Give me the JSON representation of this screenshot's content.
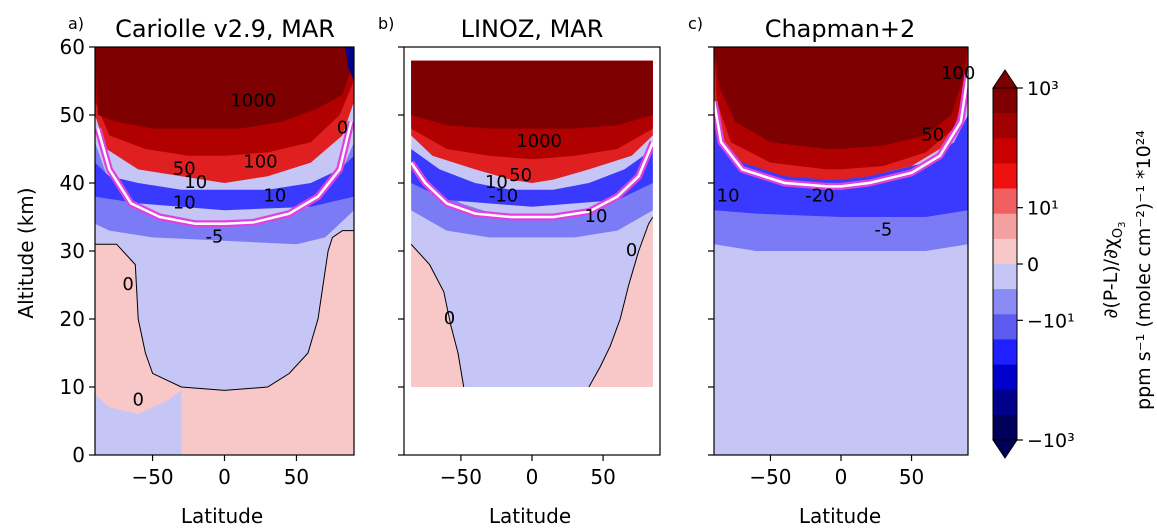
{
  "chart_data": [
    {
      "type": "heatmap",
      "panel_letter": "a)",
      "title": "Cariolle v2.9, MAR",
      "xlabel": "Latitude",
      "ylabel": "Altitude (km)",
      "xlim": [
        -90,
        90
      ],
      "ylim": [
        0,
        60
      ],
      "xticks": [
        -50,
        0,
        50
      ],
      "yticks": [
        0,
        10,
        20,
        30,
        40,
        50,
        60
      ],
      "xtick_labels": [
        "−50",
        "0",
        "50"
      ],
      "ytick_labels": [
        "0",
        "10",
        "20",
        "30",
        "40",
        "50",
        "60"
      ],
      "data_extent": {
        "lat": [
          -90,
          90
        ],
        "alt": [
          0,
          60
        ]
      },
      "contour_labels": [
        {
          "text": "1000",
          "lat": 20,
          "alt": 52
        },
        {
          "text": "100",
          "lat": 25,
          "alt": 43
        },
        {
          "text": "50",
          "lat": -28,
          "alt": 42
        },
        {
          "text": "10",
          "lat": -20,
          "alt": 40
        },
        {
          "text": "10",
          "lat": -28,
          "alt": 37
        },
        {
          "text": "10",
          "lat": 35,
          "alt": 38
        },
        {
          "text": "-5",
          "lat": -7,
          "alt": 32
        },
        {
          "text": "0",
          "lat": -67,
          "alt": 25
        },
        {
          "text": "0",
          "lat": -60,
          "alt": 8
        },
        {
          "text": "0",
          "lat": 82,
          "alt": 48
        }
      ],
      "zero_contour": [
        [
          -90,
          31
        ],
        [
          -75,
          31
        ],
        [
          -62,
          28
        ],
        [
          -60,
          20
        ],
        [
          -55,
          15
        ],
        [
          -50,
          12
        ],
        [
          -30,
          10
        ],
        [
          0,
          9.5
        ],
        [
          30,
          10
        ],
        [
          45,
          12
        ],
        [
          58,
          15
        ],
        [
          65,
          20
        ],
        [
          72,
          30
        ],
        [
          75,
          32
        ],
        [
          82,
          33
        ],
        [
          90,
          33
        ]
      ],
      "bottom_negative_band": [
        [
          -90,
          9
        ],
        [
          -80,
          7
        ],
        [
          -60,
          6
        ],
        [
          -50,
          7
        ],
        [
          -40,
          8
        ],
        [
          -30,
          9.5
        ],
        [
          -90,
          9.5
        ]
      ],
      "tropopause_line": [
        [
          -88,
          48
        ],
        [
          -80,
          42
        ],
        [
          -65,
          37
        ],
        [
          -45,
          35
        ],
        [
          -20,
          34
        ],
        [
          0,
          34
        ],
        [
          20,
          34.2
        ],
        [
          45,
          35.5
        ],
        [
          65,
          38
        ],
        [
          80,
          42
        ],
        [
          88,
          49
        ]
      ]
    },
    {
      "type": "heatmap",
      "panel_letter": "b)",
      "title": "LINOZ, MAR",
      "xlabel": "Latitude",
      "ylabel": "",
      "xlim": [
        -90,
        90
      ],
      "ylim": [
        0,
        60
      ],
      "xticks": [
        -50,
        0,
        50
      ],
      "yticks": [
        0,
        10,
        20,
        30,
        40,
        50,
        60
      ],
      "xtick_labels": [
        "−50",
        "0",
        "50"
      ],
      "ytick_labels": [],
      "data_extent": {
        "lat": [
          -85,
          85
        ],
        "alt": [
          10,
          58
        ]
      },
      "contour_labels": [
        {
          "text": "1000",
          "lat": 5,
          "alt": 46
        },
        {
          "text": "50",
          "lat": -8,
          "alt": 41
        },
        {
          "text": "10",
          "lat": -25,
          "alt": 40
        },
        {
          "text": "-10",
          "lat": -20,
          "alt": 38
        },
        {
          "text": "10",
          "lat": 45,
          "alt": 35
        },
        {
          "text": "0",
          "lat": 70,
          "alt": 30
        },
        {
          "text": "0",
          "lat": -58,
          "alt": 20
        }
      ],
      "zero_contour": [
        [
          -85,
          31
        ],
        [
          -72,
          28
        ],
        [
          -62,
          24
        ],
        [
          -57,
          19
        ],
        [
          -52,
          15
        ],
        [
          -48,
          10
        ]
      ],
      "zero_contour_right": [
        [
          40,
          10
        ],
        [
          48,
          13
        ],
        [
          55,
          16
        ],
        [
          62,
          20
        ],
        [
          68,
          25
        ],
        [
          75,
          30
        ],
        [
          82,
          34
        ],
        [
          85,
          35
        ]
      ],
      "tropopause_line": [
        [
          -85,
          43
        ],
        [
          -75,
          40
        ],
        [
          -60,
          37
        ],
        [
          -40,
          35.5
        ],
        [
          -15,
          35
        ],
        [
          0,
          35
        ],
        [
          15,
          35
        ],
        [
          40,
          35.8
        ],
        [
          60,
          38
        ],
        [
          75,
          41
        ],
        [
          85,
          46
        ]
      ]
    },
    {
      "type": "heatmap",
      "panel_letter": "c)",
      "title": "Chapman+2",
      "xlabel": "Latitude",
      "ylabel": "",
      "xlim": [
        -90,
        90
      ],
      "ylim": [
        0,
        60
      ],
      "xticks": [
        -50,
        0,
        50
      ],
      "yticks": [
        0,
        10,
        20,
        30,
        40,
        50,
        60
      ],
      "xtick_labels": [
        "−50",
        "0",
        "50"
      ],
      "ytick_labels": [],
      "data_extent": {
        "lat": [
          -90,
          90
        ],
        "alt": [
          0,
          60
        ]
      },
      "contour_labels": [
        {
          "text": "10",
          "lat": -80,
          "alt": 38
        },
        {
          "text": "-20",
          "lat": -15,
          "alt": 38
        },
        {
          "text": "-5",
          "lat": 30,
          "alt": 33
        },
        {
          "text": "50",
          "lat": 65,
          "alt": 47
        },
        {
          "text": "100",
          "lat": 83,
          "alt": 56
        }
      ],
      "tropopause_line": [
        [
          -90,
          52
        ],
        [
          -85,
          46
        ],
        [
          -70,
          42
        ],
        [
          -40,
          40
        ],
        [
          -10,
          39.5
        ],
        [
          0,
          39.5
        ],
        [
          20,
          40
        ],
        [
          50,
          41.5
        ],
        [
          70,
          44
        ],
        [
          85,
          49
        ],
        [
          90,
          56
        ]
      ]
    }
  ],
  "colorbar": {
    "label_line1": "∂(P-L)/∂χ",
    "label_sub": "O",
    "label_subsub": "3",
    "label_line2": "ppm s⁻¹ (molec cm⁻²)⁻¹ *10²⁴",
    "tick_labels": [
      "10³",
      "10¹",
      "0",
      "−10¹",
      "−10³"
    ],
    "levels_top_to_bottom": [
      "#7f0000",
      "#a10000",
      "#c80000",
      "#ee1111",
      "#f06060",
      "#f4a0a0",
      "#f8c8c8",
      "#c5c5f6",
      "#8a8af5",
      "#5b5bf0",
      "#1f1fff",
      "#0000cc",
      "#00008a",
      "#00005a"
    ]
  },
  "colors": {
    "dark_red": "#7f0000",
    "red": "#b00000",
    "bright_red": "#e02020",
    "light_red": "#f5a0a0",
    "pale_red": "#f8c8c8",
    "pale_blue": "#c5c5f6",
    "mid_blue": "#7b7bf5",
    "blue": "#3a3aff",
    "dark_blue": "#00008a",
    "tropopause_outer": "#e040e0",
    "tropopause_inner": "#ffffff"
  }
}
